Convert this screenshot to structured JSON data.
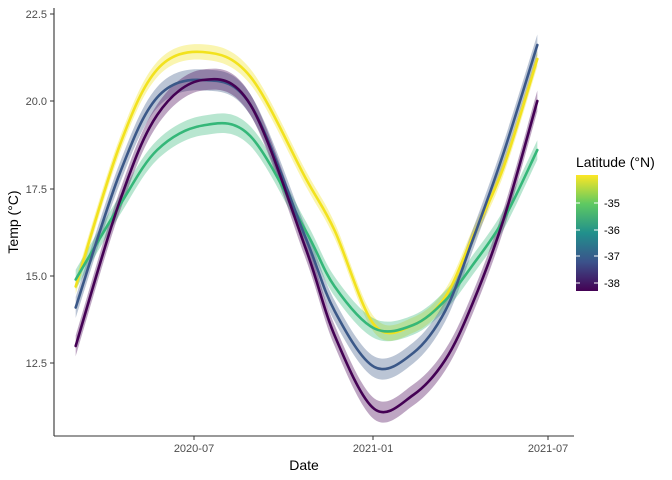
{
  "chart_data": {
    "type": "line",
    "xlabel": "Date",
    "ylabel": "Temp (°C)",
    "x_ticks": [
      "2020-07",
      "2021-01",
      "2021-07"
    ],
    "y_ticks": [
      "12.5",
      "15.0",
      "17.5",
      "20.0",
      "22.5"
    ],
    "ylim": [
      10.4,
      22.6
    ],
    "xlim": [
      "2020-02-14",
      "2021-07-17"
    ],
    "grid": false,
    "smoothed_with_confidence_band": true,
    "legend": {
      "title": "Latitude (°N)",
      "position": "right",
      "type": "colorbar",
      "labels": [
        "-35",
        "-36",
        "-37",
        "-38"
      ],
      "range": [
        -38.4,
        -34.4
      ],
      "colormap": [
        "#440154",
        "#3b528b",
        "#21908c",
        "#5ec962",
        "#fde725"
      ]
    },
    "series": [
      {
        "latitude": -34.5,
        "color": "#f2e21e",
        "band_half_width": 0.22,
        "x": [
          "2020-03-01",
          "2020-04-15",
          "2020-05-24",
          "2020-07-10",
          "2020-08-28",
          "2020-10-24",
          "2020-11-23",
          "2021-01-03",
          "2021-02-12",
          "2021-03-17",
          "2021-04-14",
          "2021-05-16",
          "2021-06-20"
        ],
        "y": [
          14.7,
          18.7,
          20.9,
          21.4,
          20.7,
          17.8,
          16.3,
          13.6,
          13.6,
          14.4,
          16.1,
          18.1,
          21.2
        ]
      },
      {
        "latitude": -35.8,
        "color": "#35b779",
        "band_half_width": 0.28,
        "x": [
          "2020-03-01",
          "2020-04-15",
          "2020-05-24",
          "2020-07-10",
          "2020-08-28",
          "2020-10-24",
          "2020-11-23",
          "2021-01-03",
          "2021-02-12",
          "2021-03-17",
          "2021-04-14",
          "2021-05-16",
          "2021-06-20"
        ],
        "y": [
          14.9,
          17.0,
          18.6,
          19.3,
          19.0,
          16.3,
          14.7,
          13.5,
          13.6,
          14.3,
          15.3,
          16.6,
          18.6
        ]
      },
      {
        "latitude": -37.1,
        "color": "#3b5888",
        "band_half_width": 0.3,
        "x": [
          "2020-03-01",
          "2020-04-15",
          "2020-05-24",
          "2020-07-10",
          "2020-08-28",
          "2020-10-24",
          "2020-11-23",
          "2021-01-03",
          "2021-02-12",
          "2021-03-17",
          "2021-04-14",
          "2021-05-16",
          "2021-06-20"
        ],
        "y": [
          14.1,
          17.9,
          20.1,
          20.6,
          19.9,
          16.1,
          14.0,
          12.4,
          12.8,
          14.0,
          16.0,
          18.5,
          21.6
        ]
      },
      {
        "latitude": -38.2,
        "color": "#440154",
        "band_half_width": 0.3,
        "x": [
          "2020-03-01",
          "2020-04-15",
          "2020-05-24",
          "2020-07-10",
          "2020-08-28",
          "2020-10-24",
          "2020-11-23",
          "2021-01-03",
          "2021-02-12",
          "2021-03-17",
          "2021-04-14",
          "2021-05-16",
          "2021-06-20"
        ],
        "y": [
          13.0,
          17.1,
          19.6,
          20.6,
          19.9,
          15.8,
          13.3,
          11.2,
          11.6,
          12.6,
          14.2,
          16.6,
          20.0
        ]
      }
    ]
  }
}
